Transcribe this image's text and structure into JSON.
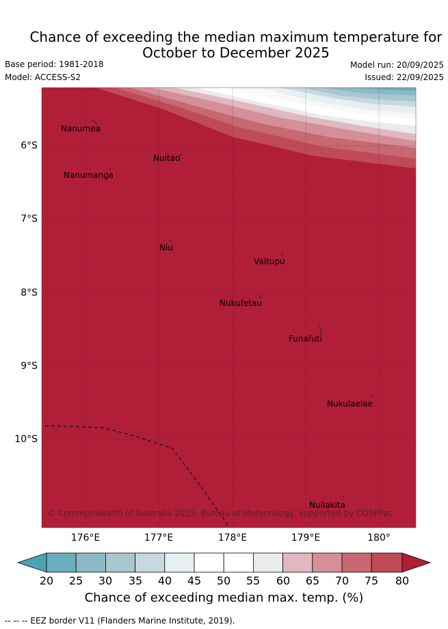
{
  "title": {
    "line1": "Chance of exceeding the median maximum temperature for",
    "line2": "October to December 2025"
  },
  "meta": {
    "base_period": "Base period: 1981-2018",
    "model": "Model: ACCESS-S2",
    "model_run": "Model run: 20/09/2025",
    "issued": "Issued: 22/09/2025"
  },
  "map": {
    "lon_range": [
      175.5,
      180.5
    ],
    "lat_range": [
      -11.2,
      -5.2
    ],
    "lat_ticks": [
      "6°S",
      "7°S",
      "8°S",
      "9°S",
      "10°S"
    ],
    "lon_ticks": [
      "176°E",
      "177°E",
      "178°E",
      "179°E",
      "180°"
    ],
    "places": [
      {
        "name": "Nanumea"
      },
      {
        "name": "Nuitao"
      },
      {
        "name": "Nanumanga"
      },
      {
        "name": "Niu"
      },
      {
        "name": "Vaitupu"
      },
      {
        "name": "Nukufetau"
      },
      {
        "name": "Funafuti"
      },
      {
        "name": "Nukulaelae"
      },
      {
        "name": "Nuilakita"
      }
    ],
    "copyright": "© Commonwealth of Australia 2025, Bureau of Meteorology, supported by COSPPac",
    "colors": {
      "c20": "#69aebd",
      "c25": "#8bbac6",
      "c30": "#a9c7ce",
      "c35": "#c7d8de",
      "c40": "#e8eff2",
      "c45": "#ffffff",
      "c50": "#ffffff",
      "c55": "#ebeaec",
      "c60": "#e0b8c0",
      "c65": "#d58f99",
      "c70": "#c86872",
      "c75": "#bf4b58",
      "c80": "#b01e38"
    }
  },
  "colorbar": {
    "ticks": [
      "20",
      "25",
      "30",
      "35",
      "40",
      "45",
      "50",
      "55",
      "60",
      "65",
      "70",
      "75",
      "80"
    ],
    "title": "Chance of exceeding median max. temp. (%)"
  },
  "footer": "--  --  -- EEZ border V11 (Flanders Marine Institute, 2019)."
}
